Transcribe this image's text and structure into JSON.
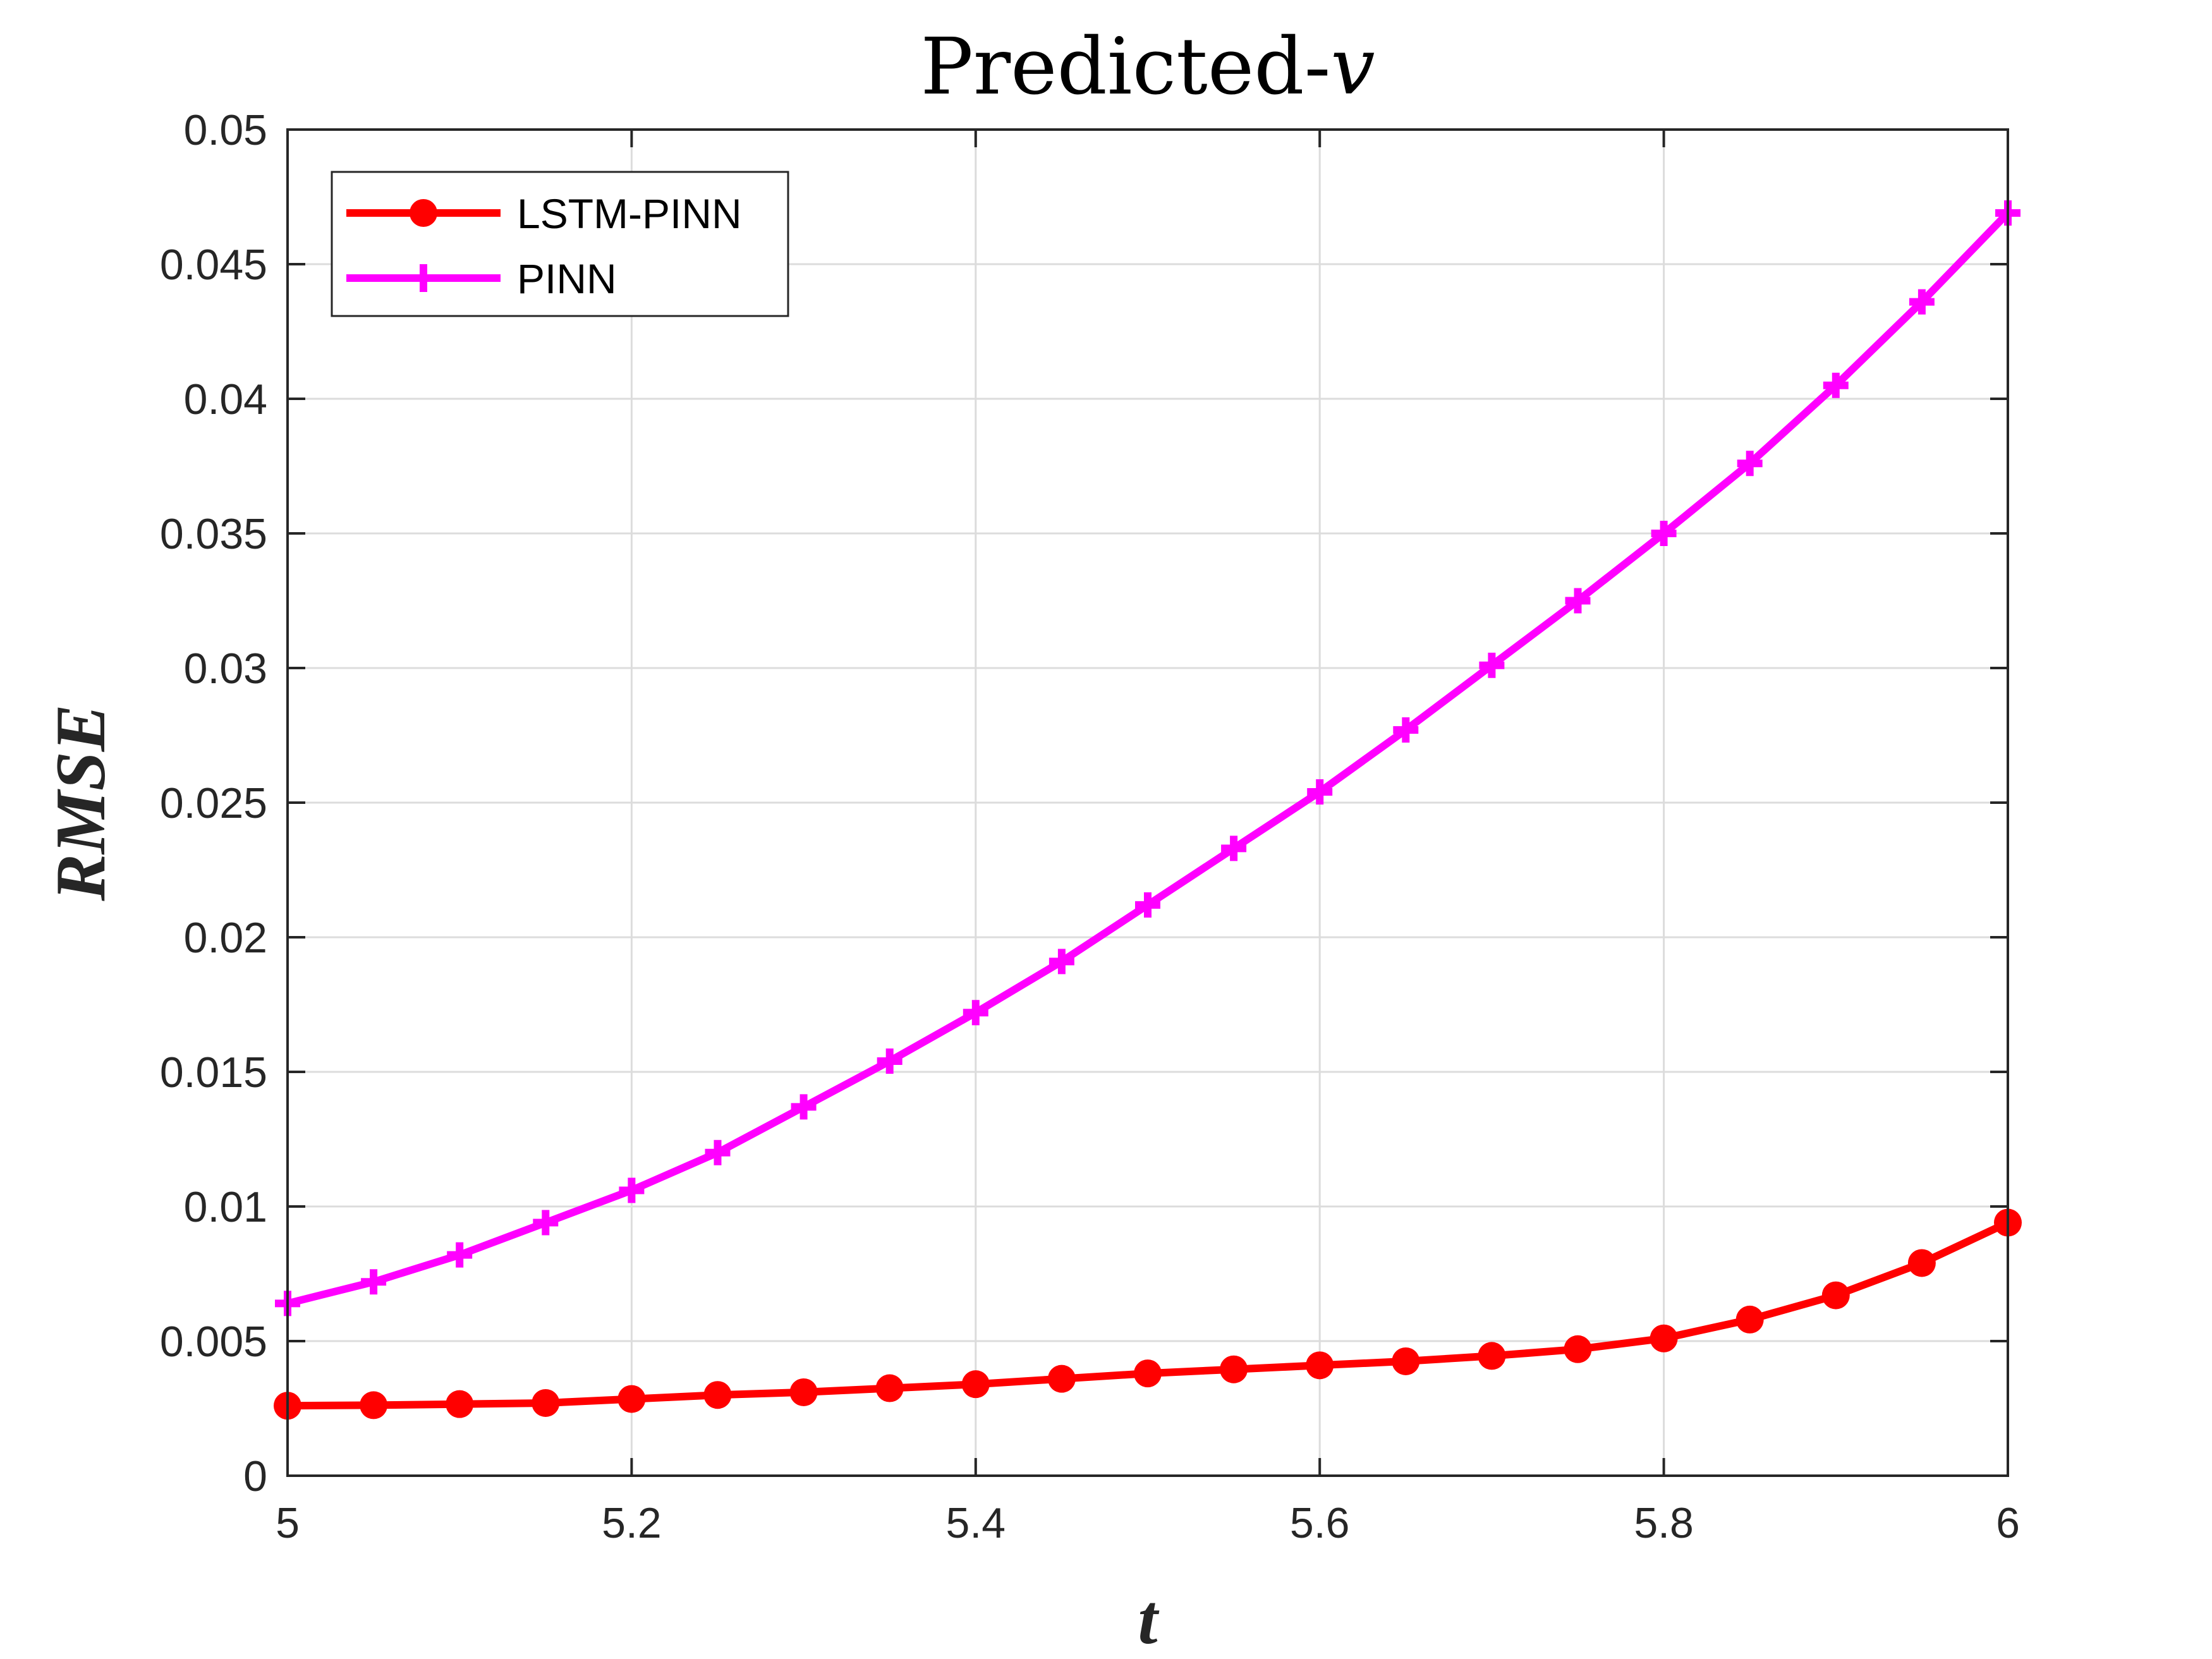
{
  "chart_data": {
    "type": "line",
    "title": "Predicted-",
    "title_variable": "v",
    "xlabel": "t",
    "ylabel": "RMSE",
    "xlim": [
      5,
      6
    ],
    "ylim": [
      0,
      0.05
    ],
    "x_ticks": [
      5,
      5.2,
      5.4,
      5.6,
      5.8,
      6
    ],
    "x_tick_labels": [
      "5",
      "5.2",
      "5.4",
      "5.6",
      "5.8",
      "6"
    ],
    "y_ticks": [
      0,
      0.005,
      0.01,
      0.015,
      0.02,
      0.025,
      0.03,
      0.035,
      0.04,
      0.045,
      0.05
    ],
    "y_tick_labels": [
      "0",
      "0.005",
      "0.01",
      "0.015",
      "0.02",
      "0.025",
      "0.03",
      "0.035",
      "0.04",
      "0.045",
      "0.05"
    ],
    "grid": true,
    "legend_position": "top-left",
    "x": [
      5,
      5.05,
      5.1,
      5.15,
      5.2,
      5.25,
      5.3,
      5.35,
      5.4,
      5.45,
      5.5,
      5.55,
      5.6,
      5.65,
      5.7,
      5.75,
      5.8,
      5.85,
      5.9,
      5.95,
      6
    ],
    "series": [
      {
        "name": "LSTM-PINN",
        "color": "#ff0000",
        "marker": "circle",
        "values": [
          0.0026,
          0.00262,
          0.00266,
          0.0027,
          0.00285,
          0.003,
          0.0031,
          0.00325,
          0.0034,
          0.0036,
          0.0038,
          0.00395,
          0.0041,
          0.00425,
          0.00445,
          0.0047,
          0.0051,
          0.0058,
          0.0067,
          0.0079,
          0.0094
        ]
      },
      {
        "name": "PINN",
        "color": "#ff00ff",
        "marker": "plus",
        "values": [
          0.0064,
          0.0072,
          0.0082,
          0.0094,
          0.0106,
          0.012,
          0.0137,
          0.0154,
          0.0172,
          0.0191,
          0.0212,
          0.0233,
          0.0254,
          0.0277,
          0.0301,
          0.0325,
          0.035,
          0.0376,
          0.0405,
          0.0436,
          0.0469
        ]
      }
    ]
  }
}
